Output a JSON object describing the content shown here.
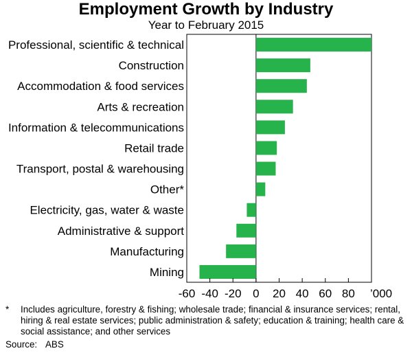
{
  "chart_data": {
    "type": "bar",
    "orientation": "horizontal",
    "title": "Employment Growth by Industry",
    "subtitle": "Year to February 2015",
    "units_label": "’000",
    "xlim": [
      -60,
      100
    ],
    "x_ticks": [
      -60,
      -40,
      -20,
      0,
      20,
      40,
      60,
      80
    ],
    "grid": false,
    "bar_color": "#27b34b",
    "categories": [
      "Professional, scientific & technical",
      "Construction",
      "Accommodation & food services",
      "Arts & recreation",
      "Information & telecommunications",
      "Retail trade",
      "Transport, postal & warehousing",
      "Other*",
      "Electricity, gas, water & waste",
      "Administrative & support",
      "Manufacturing",
      "Mining"
    ],
    "values": [
      100,
      47,
      44,
      32,
      25,
      18,
      17,
      8,
      -8,
      -17,
      -26,
      -49
    ]
  },
  "footnote": {
    "mark": "*",
    "text": "Includes agriculture, forestry & fishing; wholesale trade; financial &  insurance services; rental, hiring & real estate services; public administration & safety; education & training; health care & social assistance; and other services"
  },
  "source": {
    "label": "Source:",
    "value": "ABS"
  }
}
